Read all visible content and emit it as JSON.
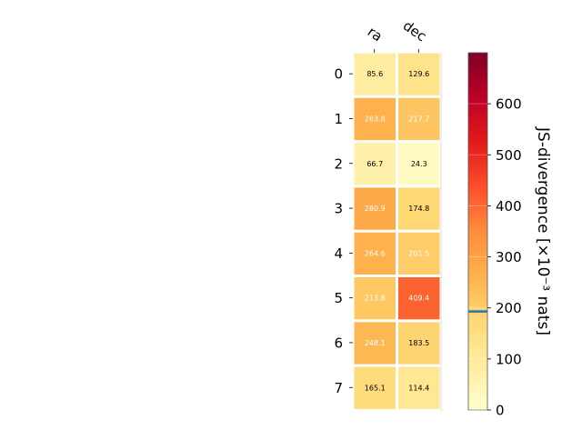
{
  "chart_data": {
    "type": "heatmap",
    "columns": [
      "ra",
      "dec"
    ],
    "rows": [
      "0",
      "1",
      "2",
      "3",
      "4",
      "5",
      "6",
      "7"
    ],
    "values": [
      [
        85.6,
        129.6
      ],
      [
        263.8,
        217.7
      ],
      [
        66.7,
        24.3
      ],
      [
        280.9,
        174.8
      ],
      [
        264.6,
        201.5
      ],
      [
        213.8,
        409.4
      ],
      [
        248.1,
        183.5
      ],
      [
        165.1,
        114.4
      ]
    ],
    "cell_labels": [
      [
        "85.6",
        "129.6"
      ],
      [
        "263.8",
        "217.7"
      ],
      [
        "66.7",
        "24.3"
      ],
      [
        "280.9",
        "174.8"
      ],
      [
        "264.6",
        "201.5"
      ],
      [
        "213.8",
        "409.4"
      ],
      [
        "248.1",
        "183.5"
      ],
      [
        "165.1",
        "114.4"
      ]
    ],
    "colormap": "YlOrRd",
    "colorbar": {
      "label": "JS-divergence [×10⁻³ nats]",
      "range": [
        0,
        700
      ],
      "ticks": [
        "0",
        "100",
        "200",
        "300",
        "400",
        "500",
        "600"
      ],
      "marker_value": 193,
      "marker_color": "#1f77b4"
    }
  }
}
